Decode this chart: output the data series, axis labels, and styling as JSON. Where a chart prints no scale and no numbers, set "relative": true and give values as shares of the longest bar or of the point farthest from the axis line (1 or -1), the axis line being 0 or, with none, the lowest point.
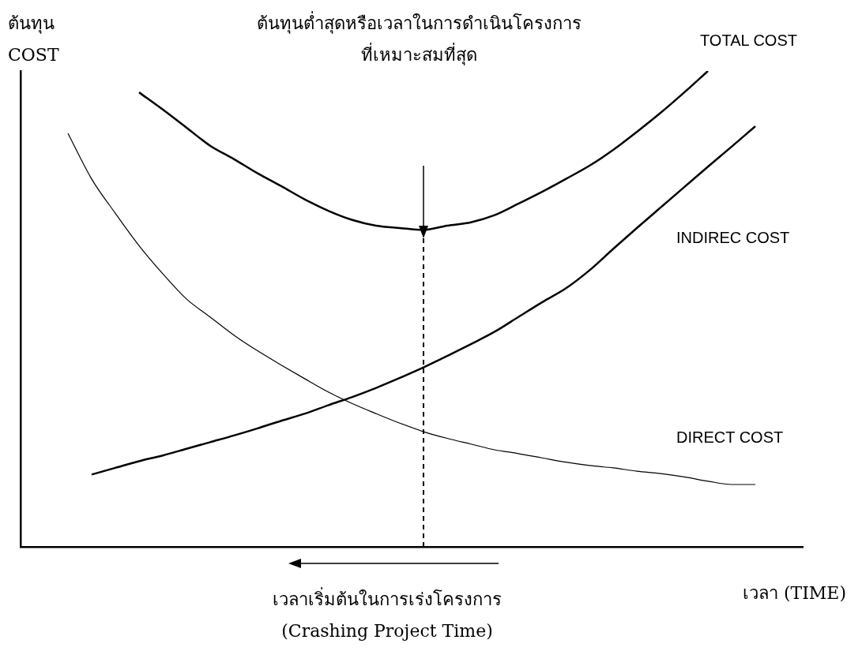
{
  "chart_data": {
    "type": "line",
    "title": "ต้นทุนต่ำสุดหรือเวลาในการดำเนินโครงการ\nที่เหมาะสมที่สุด",
    "ylabel": "ต้นทุน\nCOST",
    "xlabel": "เวลา (TIME)",
    "categories": [
      null,
      null,
      null,
      null,
      null,
      null,
      null,
      null,
      null,
      null,
      null,
      null,
      null,
      null,
      null,
      null,
      null,
      null,
      null,
      null,
      null,
      null,
      null,
      null,
      null,
      null,
      null,
      null,
      null,
      null,
      null,
      null,
      null,
      null
    ],
    "relative": true,
    "grid": false,
    "legend": false,
    "marker": "none",
    "series": [
      {
        "name": "TOTAL COST",
        "color": "#000000",
        "values": [
          null,
          null,
          null,
          null,
          null,
          0.955,
          0.919,
          0.881,
          0.843,
          0.815,
          0.785,
          0.758,
          0.73,
          0.706,
          0.687,
          0.675,
          0.67,
          0.666,
          0.675,
          0.682,
          0.697,
          0.721,
          0.746,
          0.773,
          0.801,
          0.834,
          0.872,
          0.912,
          0.955,
          1,
          null,
          null,
          null,
          null
        ]
      },
      {
        "name": "INDIREC COST",
        "color": "#000000",
        "values": [
          null,
          null,
          null,
          0.152,
          0.166,
          0.18,
          0.192,
          0.206,
          0.22,
          0.234,
          0.249,
          0.265,
          0.28,
          0.298,
          0.315,
          0.334,
          0.355,
          0.377,
          0.401,
          0.426,
          0.452,
          0.483,
          0.514,
          0.543,
          0.581,
          0.626,
          0.67,
          0.713,
          0.756,
          0.799,
          0.841,
          0.884,
          null,
          null
        ]
      },
      {
        "name": "DIRECT COST",
        "color": "#000000",
        "values": [
          null,
          null,
          0.869,
          0.773,
          0.701,
          0.633,
          0.574,
          0.521,
          0.483,
          0.445,
          0.412,
          0.382,
          0.353,
          0.325,
          0.301,
          0.28,
          0.26,
          0.242,
          0.228,
          0.216,
          0.204,
          0.196,
          0.187,
          0.178,
          0.171,
          0.166,
          0.159,
          0.154,
          0.147,
          0.138,
          0.131,
          0.131,
          null,
          null
        ]
      }
    ],
    "annotations": [
      "เวลาเริ่มต้นในการเร่งโครงการ\n(Crashing Project Time)"
    ]
  }
}
